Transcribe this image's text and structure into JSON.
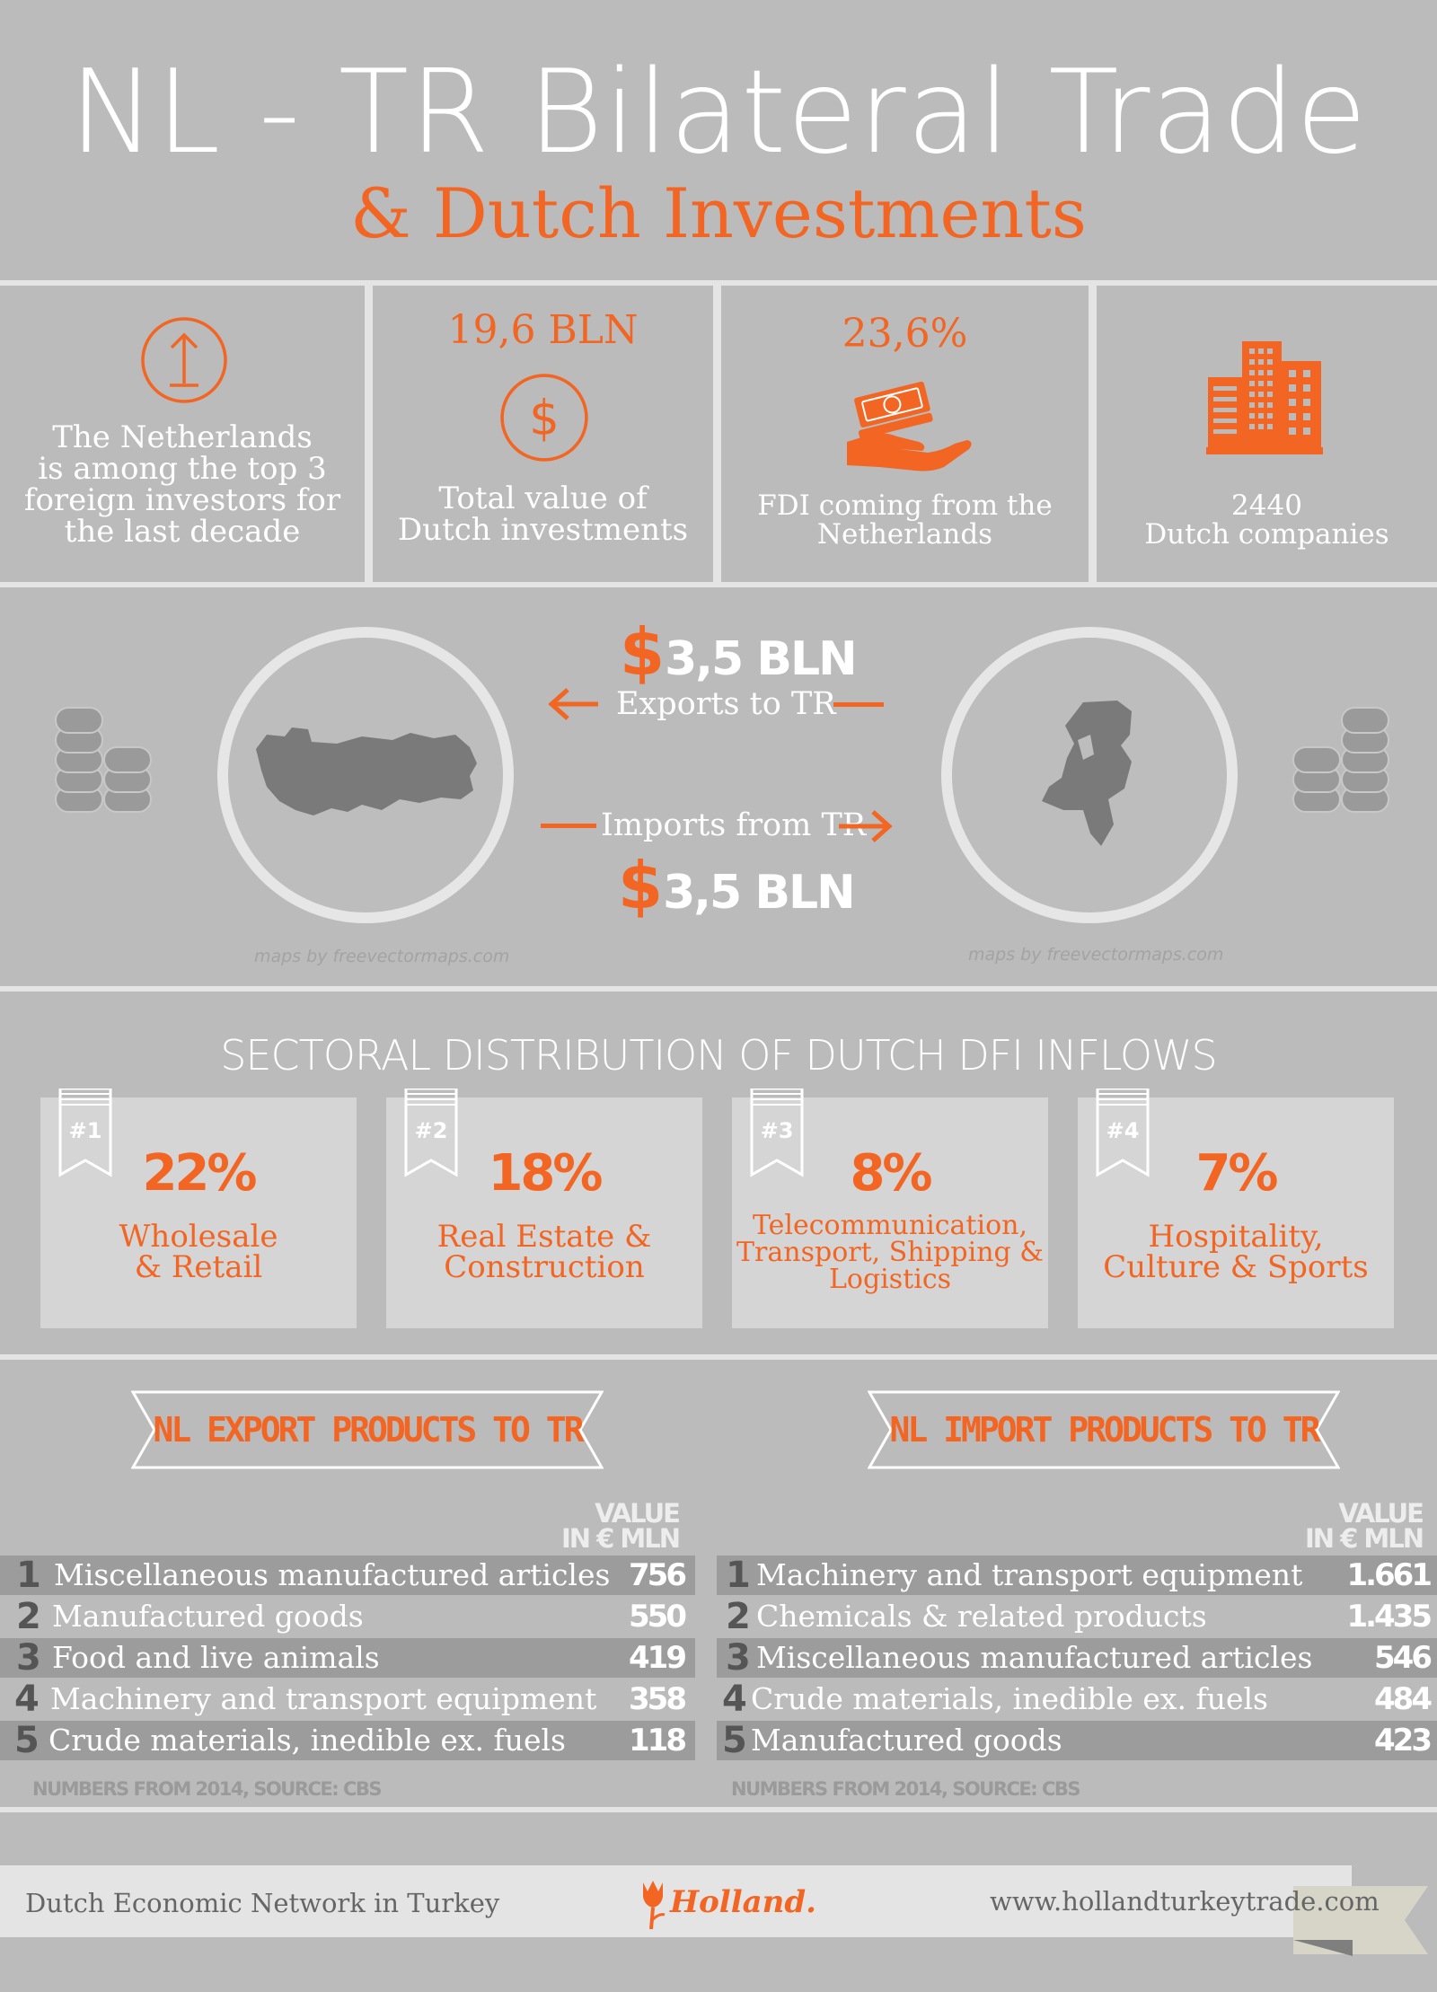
{
  "header": {
    "title": "NL - TR Bilateral Trade",
    "subtitle": "& Dutch Investments"
  },
  "stats": [
    {
      "icon": "up-arrow-circle-icon",
      "text_lines": [
        "The Netherlands",
        "is among the top 3",
        "foreign investors for",
        "the last decade"
      ]
    },
    {
      "value": "19,6 BLN",
      "icon": "dollar-circle-icon",
      "text_lines": [
        "Total value of",
        "Dutch investments"
      ]
    },
    {
      "value": "23,6%",
      "icon": "money-hand-icon",
      "text_lines": [
        "FDI coming from the",
        "Netherlands"
      ]
    },
    {
      "icon": "buildings-icon",
      "text_lines": [
        "2440",
        "Dutch companies"
      ]
    }
  ],
  "trade": {
    "exports_value": "3,5 BLN",
    "exports_label": "Exports to TR",
    "imports_label": "Imports from TR",
    "imports_value": "3,5 BLN",
    "currency_symbol": "$",
    "map_credit": "maps by freevectormaps.com"
  },
  "sectoral": {
    "title": "SECTORAL DISTRIBUTION OF DUTCH DFI INFLOWS",
    "cards": [
      {
        "rank": "#1",
        "percent": "22%",
        "label_lines": [
          "Wholesale",
          "& Retail"
        ]
      },
      {
        "rank": "#2",
        "percent": "18%",
        "label_lines": [
          "Real Estate &",
          "Construction"
        ]
      },
      {
        "rank": "#3",
        "percent": "8%",
        "label_lines": [
          "Telecommunication,",
          "Transport, Shipping &",
          "Logistics"
        ]
      },
      {
        "rank": "#4",
        "percent": "7%",
        "label_lines": [
          "Hospitality,",
          "Culture & Sports"
        ]
      }
    ]
  },
  "export_products": {
    "title": "NL EXPORT PRODUCTS TO TR",
    "column_header": [
      "VALUE",
      "IN € MLN"
    ],
    "rows": [
      {
        "rank": "1",
        "label": "Miscellaneous manufactured articles",
        "value": "756"
      },
      {
        "rank": "2",
        "label": "Manufactured goods",
        "value": "550"
      },
      {
        "rank": "3",
        "label": "Food and live animals",
        "value": "419"
      },
      {
        "rank": "4",
        "label": "Machinery and transport equipment",
        "value": "358"
      },
      {
        "rank": "5",
        "label": "Crude materials, inedible ex. fuels",
        "value": "118"
      }
    ],
    "source": "NUMBERS FROM 2014, SOURCE: CBS"
  },
  "import_products": {
    "title": "NL IMPORT PRODUCTS TO TR",
    "column_header": [
      "VALUE",
      "IN € MLN"
    ],
    "rows": [
      {
        "rank": "1",
        "label": "Machinery and transport equipment",
        "value": "1.661"
      },
      {
        "rank": "2",
        "label": "Chemicals & related products",
        "value": "1.435"
      },
      {
        "rank": "3",
        "label": "Miscellaneous manufactured articles",
        "value": "546"
      },
      {
        "rank": "4",
        "label": "Crude materials, inedible ex. fuels",
        "value": "484"
      },
      {
        "rank": "5",
        "label": "Manufactured goods",
        "value": "423"
      }
    ],
    "source": "NUMBERS FROM 2014, SOURCE: CBS"
  },
  "footer": {
    "left_text": "Dutch Economic Network in Turkey",
    "logo_text": "Holland.",
    "url": "www.hollandturkeytrade.com"
  },
  "colors": {
    "accent": "#f26522",
    "background": "#bbbbbb",
    "divider": "#e4e4e4",
    "row_dark": "#9c9c9c",
    "card": "#d5d5d5"
  }
}
